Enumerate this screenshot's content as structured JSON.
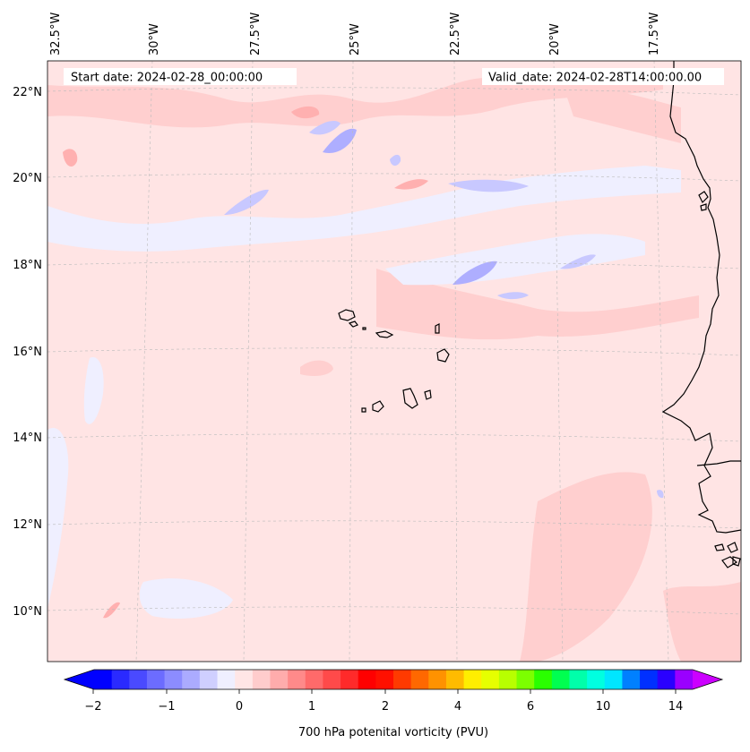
{
  "map": {
    "start_label": "Start date: 2024-02-28_00:00:00",
    "valid_label": "Valid_date: 2024-02-28T14:00:00.00",
    "lon_labels": [
      "32.5°W",
      "30°W",
      "27.5°W",
      "25°W",
      "22.5°W",
      "20°W",
      "17.5°W"
    ],
    "lat_labels": [
      "22°N",
      "20°N",
      "18°N",
      "16°N",
      "14°N",
      "12°N",
      "10°N"
    ],
    "background_color": "#ffe4e4"
  },
  "colorbar": {
    "label": "700 hPa potenital vorticity (PVU)",
    "tick_labels": [
      "−2",
      "−1",
      "0",
      "1",
      "2",
      "4",
      "6",
      "10",
      "14"
    ],
    "colors": [
      "#0000ff",
      "#2a2aff",
      "#4a4aff",
      "#6c6cff",
      "#8c8cff",
      "#ababff",
      "#cfcfff",
      "#efefff",
      "#ffe6e6",
      "#ffcccc",
      "#ffacac",
      "#ff8a8a",
      "#ff6a6a",
      "#ff4a4a",
      "#ff2a2a",
      "#ff0000",
      "#ff1000",
      "#ff3a00",
      "#ff6800",
      "#ff9200",
      "#ffbb00",
      "#ffee00",
      "#e6ff00",
      "#b8ff00",
      "#7cff00",
      "#2aff00",
      "#00ff50",
      "#00ffaa",
      "#00ffe0",
      "#00e6ff",
      "#0080ff",
      "#0030ff",
      "#2a00ff",
      "#9a00ff"
    ],
    "extend_min_color": "#0000ff",
    "extend_max_color": "#cc00ff"
  }
}
